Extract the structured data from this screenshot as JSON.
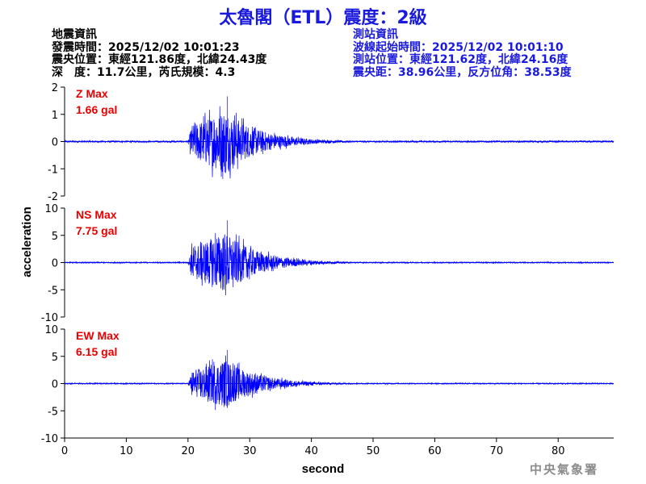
{
  "header": {
    "title": "太魯閣（ETL）震度：2級"
  },
  "earthquake_info": {
    "heading": "地震資訊",
    "origin_time": "發震時間：2025/12/02 10:01:23",
    "epicenter": "震央位置：東經121.86度，北緯24.43度",
    "depth_magnitude": "深　度：11.7公里，芮氏規模：4.3"
  },
  "station_info": {
    "heading": "測站資訊",
    "onset_time": "波線起始時間：2025/12/02 10:01:10",
    "location": "測站位置：東經121.62度，北緯24.16度",
    "distance": "震央距：38.96公里，反方位角：38.53度"
  },
  "footer": {
    "agency": "中央氣象署"
  },
  "colors": {
    "title": "#1a1adc",
    "waveform": "#0000ff",
    "max_label": "#e60000",
    "axis": "#000000",
    "agency": "#8c8c8c"
  },
  "chart_data": {
    "type": "line",
    "xlabel": "second",
    "ylabel": "acceleration",
    "xlim": [
      0,
      89
    ],
    "x_ticks": [
      0,
      10,
      20,
      30,
      40,
      50,
      60,
      70,
      80
    ],
    "grid": false,
    "event": {
      "onset": 20,
      "peak_time": 26,
      "duration_end": 48
    },
    "panels": [
      {
        "component": "Z",
        "max_label": "Z Max",
        "max_value": "1.66 gal",
        "peak": 1.66,
        "ylim": [
          -2,
          2
        ],
        "y_ticks": [
          -2,
          -1,
          0,
          1,
          2
        ],
        "noise_level": 0.03
      },
      {
        "component": "NS",
        "max_label": "NS Max",
        "max_value": "7.75 gal",
        "peak": 7.75,
        "ylim": [
          -10,
          10
        ],
        "y_ticks": [
          -10,
          -5,
          0,
          5,
          10
        ],
        "noise_level": 0.1
      },
      {
        "component": "EW",
        "max_label": "EW Max",
        "max_value": "6.15 gal",
        "peak": 6.15,
        "ylim": [
          -10,
          10
        ],
        "y_ticks": [
          -10,
          -5,
          0,
          5,
          10
        ],
        "noise_level": 0.1
      }
    ]
  }
}
